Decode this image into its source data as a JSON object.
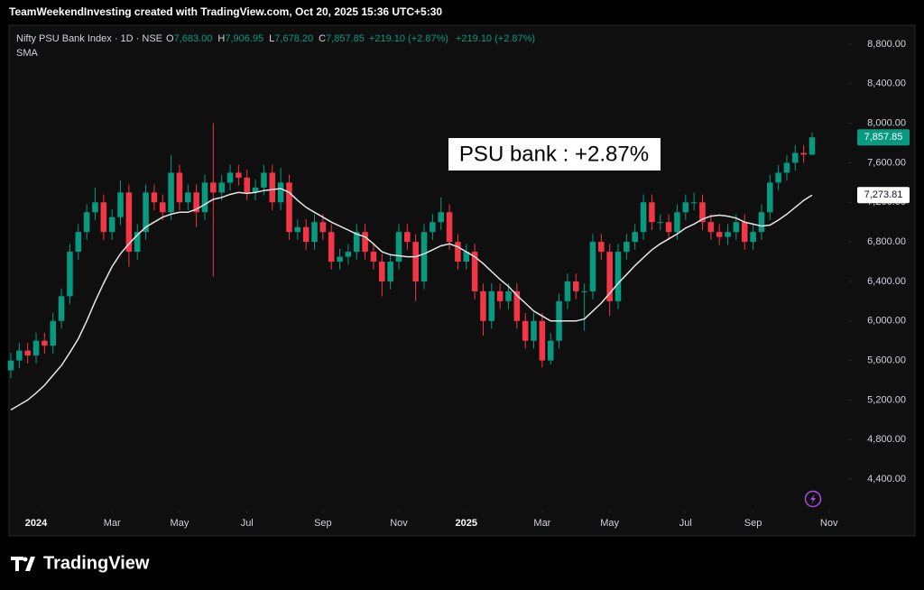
{
  "header": {
    "text": "TeamWeekendInvesting created with TradingView.com, Oct 20, 2025 15:36 UTC+5:30"
  },
  "footer": {
    "logo": "TradingView"
  },
  "chart_data": {
    "type": "candlestick",
    "symbol": "Nifty PSU Bank Index · 1D · NSE",
    "legend": [
      {
        "label": "O",
        "value": "7,683.00"
      },
      {
        "label": "H",
        "value": "7,906.95"
      },
      {
        "label": "L",
        "value": "7,678.20"
      },
      {
        "label": "C",
        "value": "7,857.85"
      }
    ],
    "change": "+219.10 (+2.87%)",
    "change_repeat": "+219.10 (+2.87%)",
    "annotation": "PSU bank : +2.87%",
    "up_color": "#089981",
    "down_color": "#f23645",
    "open": [
      5500,
      5600,
      5700,
      5650,
      5800,
      5750,
      6000,
      6250,
      6700,
      6900,
      7100,
      7200,
      6900,
      7050,
      7300,
      6700,
      6900,
      7300,
      7200,
      7100,
      7500,
      7200,
      7300,
      7100,
      7400,
      7300,
      7400,
      7500,
      7450,
      7300,
      7350,
      7500,
      7200,
      7400,
      6900,
      6950,
      6800,
      7000,
      6900,
      6600,
      6650,
      6700,
      6900,
      6700,
      6600,
      6400,
      6600,
      6900,
      6800,
      6400,
      6900,
      7000,
      7100,
      6800,
      6600,
      6700,
      6300,
      6000,
      6300,
      6200,
      6300,
      6000,
      5800,
      6000,
      5600,
      5800,
      6200,
      6400,
      6300,
      6300,
      6800,
      6700,
      6200,
      6700,
      6800,
      6900,
      7200,
      7000,
      7000,
      6900,
      7100,
      7200,
      7200,
      7000,
      6900,
      6850,
      6900,
      7000,
      6800,
      6900,
      7100,
      7400,
      7500,
      7600,
      7700,
      7683
    ],
    "high": [
      5680,
      5780,
      5780,
      5880,
      5880,
      6080,
      6330,
      6780,
      6980,
      7180,
      7350,
      7280,
      7130,
      7420,
      7380,
      6980,
      7380,
      7380,
      7280,
      7680,
      7580,
      7380,
      7380,
      7480,
      8000,
      7480,
      7580,
      7580,
      7530,
      7430,
      7580,
      7580,
      7550,
      7480,
      7030,
      7030,
      7080,
      7080,
      6980,
      6730,
      6780,
      6980,
      6980,
      6780,
      6680,
      6680,
      6980,
      6980,
      6880,
      6980,
      7080,
      7250,
      7180,
      6880,
      6780,
      6780,
      6380,
      6380,
      6380,
      6380,
      6380,
      6080,
      6080,
      6080,
      5880,
      6280,
      6480,
      6480,
      6380,
      6880,
      6880,
      6780,
      6780,
      6880,
      6980,
      7280,
      7280,
      7080,
      7080,
      7180,
      7280,
      7300,
      7280,
      7080,
      6980,
      6980,
      7080,
      7080,
      6980,
      7180,
      7480,
      7580,
      7680,
      7780,
      7780,
      7906.95
    ],
    "low": [
      5420,
      5520,
      5570,
      5570,
      5670,
      5670,
      5920,
      6170,
      6620,
      6820,
      7020,
      6820,
      6820,
      6970,
      6550,
      6620,
      6820,
      7120,
      7020,
      7020,
      7120,
      7120,
      6950,
      7020,
      6450,
      7220,
      7320,
      7370,
      7220,
      7220,
      7270,
      7120,
      7120,
      6820,
      6820,
      6720,
      6720,
      6820,
      6520,
      6520,
      6570,
      6620,
      6620,
      6520,
      6250,
      6320,
      6520,
      6720,
      6200,
      6320,
      6820,
      6920,
      6720,
      6520,
      6520,
      6220,
      5850,
      5920,
      6120,
      6120,
      5920,
      5720,
      5720,
      5530,
      5560,
      5720,
      6120,
      6220,
      5900,
      6220,
      6620,
      6050,
      6120,
      6620,
      6720,
      6820,
      6920,
      6920,
      6820,
      6820,
      7020,
      7120,
      6920,
      6820,
      6770,
      6770,
      6820,
      6720,
      6720,
      6820,
      7020,
      7320,
      7420,
      7520,
      7600,
      7678.2
    ],
    "close": [
      5600,
      5700,
      5650,
      5800,
      5750,
      6000,
      6250,
      6700,
      6900,
      7100,
      7200,
      6900,
      7050,
      7300,
      6700,
      6900,
      7300,
      7200,
      7100,
      7500,
      7200,
      7300,
      7100,
      7400,
      7300,
      7400,
      7500,
      7450,
      7300,
      7350,
      7500,
      7200,
      7400,
      6900,
      6950,
      6800,
      7000,
      6900,
      6600,
      6650,
      6700,
      6900,
      6700,
      6600,
      6400,
      6600,
      6900,
      6800,
      6400,
      6900,
      7000,
      7100,
      6800,
      6600,
      6700,
      6300,
      6000,
      6300,
      6200,
      6300,
      6000,
      5800,
      6000,
      5600,
      5800,
      6200,
      6400,
      6300,
      6300,
      6800,
      6700,
      6200,
      6700,
      6800,
      6900,
      7200,
      7000,
      7000,
      6900,
      7100,
      7200,
      7200,
      7000,
      6900,
      6850,
      6900,
      7000,
      6800,
      6900,
      7100,
      7400,
      7500,
      7600,
      7700,
      7683,
      7857.85
    ],
    "last_label": "7,857.85",
    "sma": {
      "name": "SMA",
      "color": "#e6e6e6",
      "last_label": "7,273.81",
      "values": [
        5100,
        5150,
        5200,
        5270,
        5350,
        5450,
        5550,
        5680,
        5820,
        6000,
        6200,
        6380,
        6550,
        6680,
        6780,
        6870,
        6950,
        7000,
        7050,
        7080,
        7100,
        7100,
        7130,
        7180,
        7230,
        7250,
        7280,
        7300,
        7290,
        7300,
        7320,
        7330,
        7340,
        7300,
        7220,
        7150,
        7100,
        7050,
        7000,
        6960,
        6920,
        6880,
        6850,
        6780,
        6700,
        6670,
        6660,
        6650,
        6650,
        6680,
        6720,
        6760,
        6780,
        6750,
        6700,
        6650,
        6580,
        6500,
        6420,
        6350,
        6260,
        6180,
        6100,
        6050,
        6000,
        6000,
        6000,
        6000,
        6020,
        6100,
        6180,
        6280,
        6380,
        6470,
        6560,
        6640,
        6720,
        6780,
        6830,
        6880,
        6940,
        6980,
        7030,
        7060,
        7070,
        7060,
        7040,
        7000,
        6980,
        6960,
        6970,
        7020,
        7080,
        7150,
        7220,
        7273.81
      ]
    },
    "ylim": [
      4090,
      8928
    ],
    "yticks": [
      {
        "value": 4400,
        "label": "4,400.00"
      },
      {
        "value": 4800,
        "label": "4,800.00"
      },
      {
        "value": 5200,
        "label": "5,200.00"
      },
      {
        "value": 5600,
        "label": "5,600.00"
      },
      {
        "value": 6000,
        "label": "6,000.00"
      },
      {
        "value": 6400,
        "label": "6,400.00"
      },
      {
        "value": 6800,
        "label": "6,800.00"
      },
      {
        "value": 7200,
        "label": "7,200.00"
      },
      {
        "value": 7600,
        "label": "7,600.00"
      },
      {
        "value": 8000,
        "label": "8,000.00"
      },
      {
        "value": 8400,
        "label": "8,400.00"
      },
      {
        "value": 8800,
        "label": "8,800.00"
      }
    ],
    "xticks": [
      {
        "value": 3,
        "label": "2024"
      },
      {
        "value": 12,
        "label": "Mar"
      },
      {
        "value": 20,
        "label": "May"
      },
      {
        "value": 28,
        "label": "Jul"
      },
      {
        "value": 37,
        "label": "Sep"
      },
      {
        "value": 46,
        "label": "Nov"
      },
      {
        "value": 54,
        "label": "2025"
      },
      {
        "value": 63,
        "label": "Mar"
      },
      {
        "value": 71,
        "label": "May"
      },
      {
        "value": 80,
        "label": "Jul"
      },
      {
        "value": 88,
        "label": "Sep"
      },
      {
        "value": 97,
        "label": "Nov"
      }
    ]
  }
}
